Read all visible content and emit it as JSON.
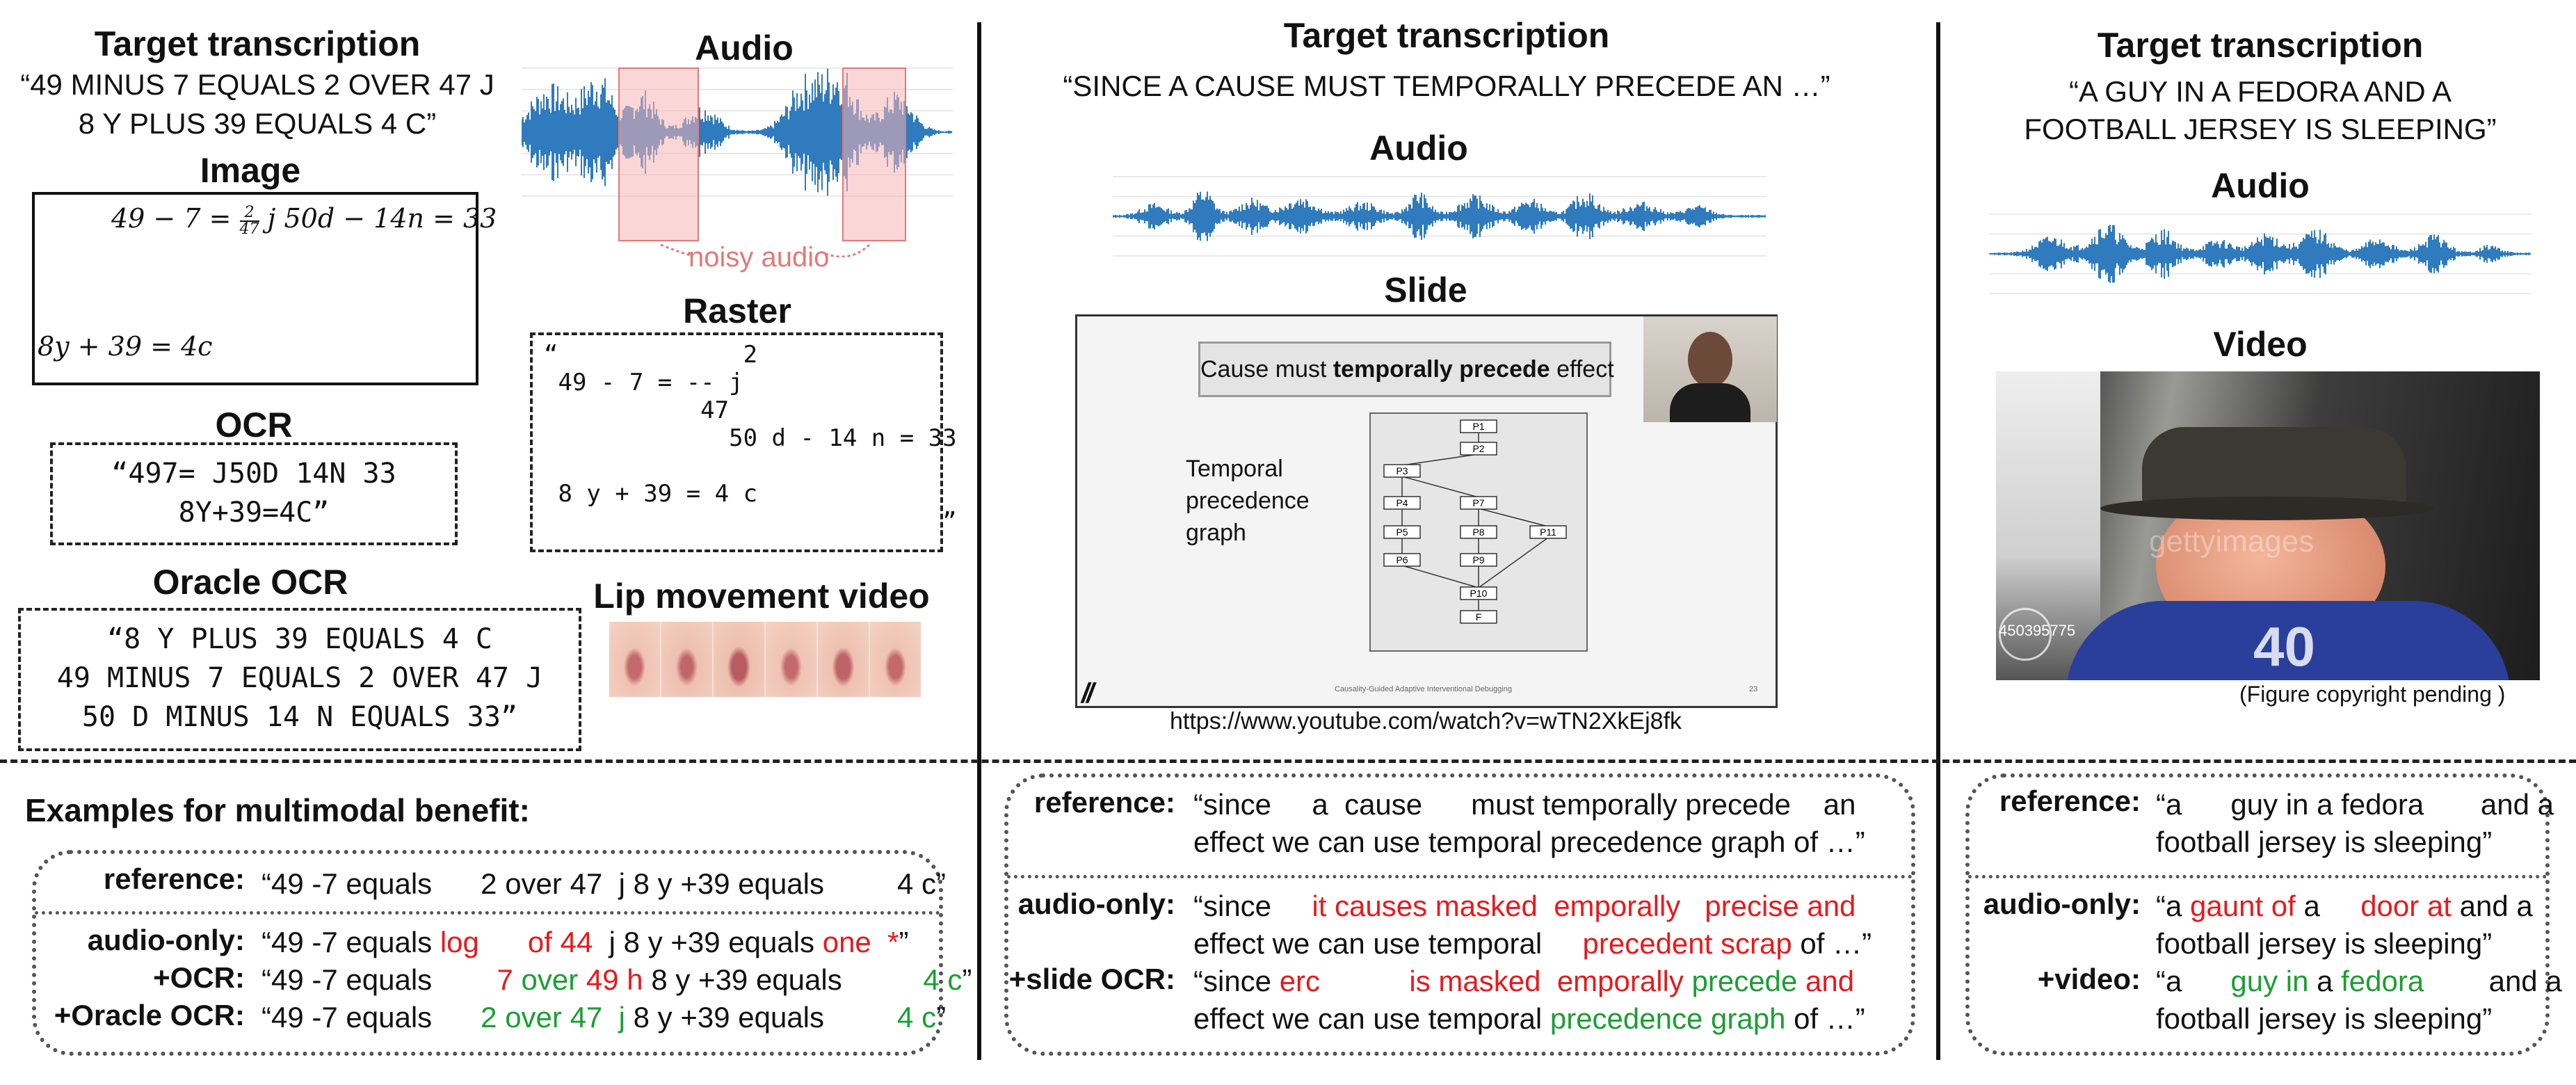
{
  "left": {
    "target_heading": "Target transcription",
    "target_line1": "“49  MINUS 7 EQUALS 2 OVER 47 J",
    "target_line2": "8 Y PLUS 39 EQUALS 4 C”",
    "audio_heading": "Audio",
    "noisy_label": "noisy audio",
    "image_heading": "Image",
    "image_eq1_left": "49 − 7 = ",
    "image_frac_num": "2",
    "image_frac_den": "47",
    "image_eq1_right": "j 50d − 14n = 33",
    "image_eq2": "8y + 39 = 4c",
    "raster_heading": "Raster",
    "raster_lines": [
      "“             2",
      " 49 - 7 = -- j",
      "           47",
      "             50 d - 14 n = 33",
      "",
      " 8 y + 39 = 4 c",
      "                            ”"
    ],
    "ocr_heading": "OCR",
    "ocr_line1": "“497= J50D 14N 33",
    "ocr_line2": "8Y+39=4C”",
    "oracle_heading": "Oracle OCR",
    "oracle_line1": "“8 Y PLUS 39 EQUALS 4 C",
    "oracle_line2": "49 MINUS 7 EQUALS 2 OVER 47 J",
    "oracle_line3": "50 D MINUS 14 N EQUALS 33”",
    "lip_heading": "Lip movement video"
  },
  "middle": {
    "target_heading": "Target transcription",
    "target_text": "“SINCE A CAUSE MUST TEMPORALLY PRECEDE AN …”",
    "audio_heading": "Audio",
    "slide_heading": "Slide",
    "slide_title_pre": "Cause must ",
    "slide_title_bold": "temporally precede",
    "slide_title_post": " effect",
    "slide_side_text": [
      "Temporal",
      "precedence",
      "graph"
    ],
    "slide_nodes": [
      "P1",
      "P2",
      "P3",
      "P4",
      "P7",
      "P5",
      "P8",
      "P11",
      "P6",
      "P9",
      "P10",
      "F"
    ],
    "slide_footer": "Causality-Guided Adaptive Interventional Debugging",
    "slide_page": "23",
    "url": "https://www.youtube.com/watch?v=wTN2XkEj8fk"
  },
  "right": {
    "target_heading": "Target transcription",
    "target_line1": "“A GUY IN A FEDORA AND A",
    "target_line2": "FOOTBALL JERSEY IS SLEEPING”",
    "audio_heading": "Audio",
    "video_heading": "Video",
    "watermark": "gettyimages",
    "jersey_number": "40",
    "stock_id": "450395775",
    "copyright": "(Figure copyright pending )"
  },
  "examples": {
    "heading": "Examples for multimodal benefit:",
    "left": {
      "reference_label": "reference:",
      "reference_text": "“49 -7 equals      2 over 47  j 8 y +39 equals         4 c”",
      "audio_only_label": "audio-only:",
      "audio_only": {
        "a": "“49 -7 equals ",
        "b": "log",
        "c": "      ",
        "d": "of 44",
        "e": "  j 8 y +39 equals ",
        "f": "one",
        "g": "  ",
        "h": "*",
        "i": "”"
      },
      "ocr_label": "+OCR:",
      "ocr": {
        "a": "“49 -7 equals        ",
        "b": "7",
        "c": " over ",
        "d": "49 h",
        "e": " 8 y +39 equals          ",
        "f": "4 c",
        "g": "”"
      },
      "oracle_label": "+Oracle OCR:",
      "oracle": {
        "a": "“49 -7 equals      ",
        "b": "2 over 47  j",
        "c": " 8 y +39 equals         ",
        "d": "4 c",
        "e": "”"
      }
    },
    "middle": {
      "reference_label": "reference:",
      "reference_1": "“since     a  cause      must temporally precede    an",
      "reference_2": "effect we can use temporal precedence graph of …”",
      "audio_only_label": "audio-only:",
      "audio_only_1a": "“since     ",
      "audio_only_1b": "it causes masked  emporally   precise and",
      "audio_only_2a": "effect we can use temporal     ",
      "audio_only_2b": "precedent scrap",
      "audio_only_2c": " of …”",
      "slide_ocr_label": "+slide OCR:",
      "slide_1a": "“since ",
      "slide_1b": "erc",
      "slide_1c": "           ",
      "slide_1d": "is masked  emporally",
      "slide_1e": " precede",
      "slide_1f": " and",
      "slide_2a": "effect we can use temporal ",
      "slide_2b": "precedence graph",
      "slide_2c": " of …”"
    },
    "right": {
      "reference_label": "reference:",
      "reference_1": "“a      guy in a fedora       and a",
      "reference_2": "football jersey is sleeping”",
      "audio_only_label": "audio-only:",
      "audio_only_1a": "“a ",
      "audio_only_1b": "gaunt of",
      "audio_only_1c": " a     ",
      "audio_only_1d": "door at",
      "audio_only_1e": " and a",
      "audio_only_2": "football jersey is sleeping”",
      "video_label": "+video:",
      "video_1a": "“a      ",
      "video_1b": "guy in",
      "video_1c": " a ",
      "video_1d": "fedora",
      "video_1e": "        and a",
      "video_2": "football jersey is sleeping”"
    }
  },
  "colors": {
    "red": "#e8191d",
    "green": "#1c9e35",
    "wave": "#2f7bbd",
    "noise": "#f5b5b5"
  }
}
